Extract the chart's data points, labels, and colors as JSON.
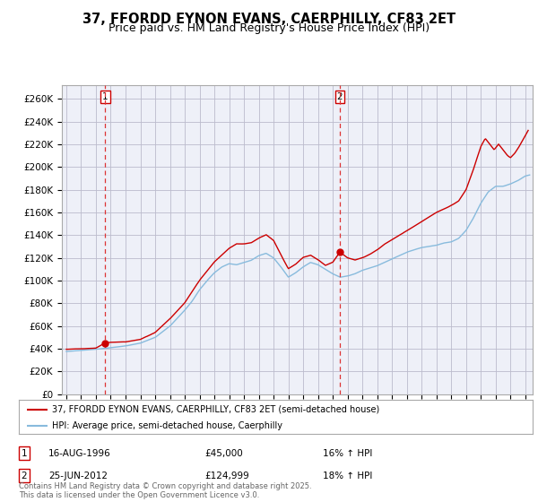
{
  "title": "37, FFORDD EYNON EVANS, CAERPHILLY, CF83 2ET",
  "subtitle": "Price paid vs. HM Land Registry's House Price Index (HPI)",
  "title_fontsize": 10.5,
  "subtitle_fontsize": 9,
  "ylabel_values": [
    0,
    20000,
    40000,
    60000,
    80000,
    100000,
    120000,
    140000,
    160000,
    180000,
    200000,
    220000,
    240000,
    260000
  ],
  "ylim": [
    0,
    272000
  ],
  "xlim_start": 1993.7,
  "xlim_end": 2025.5,
  "sale1_date": 1996.62,
  "sale1_price": 45000,
  "sale1_label": "1",
  "sale2_date": 2012.48,
  "sale2_price": 124999,
  "sale2_label": "2",
  "vline1_date": 1996.62,
  "vline2_date": 2012.48,
  "red_color": "#cc0000",
  "blue_color": "#88bbdd",
  "vline_color": "#dd3333",
  "grid_color": "#bbbbcc",
  "plot_bg_color": "#eef0f8",
  "legend_label_red": "37, FFORDD EYNON EVANS, CAERPHILLY, CF83 2ET (semi-detached house)",
  "legend_label_blue": "HPI: Average price, semi-detached house, Caerphilly",
  "annotation1_num": "1",
  "annotation1_date": "16-AUG-1996",
  "annotation1_price": "£45,000",
  "annotation1_hpi": "16% ↑ HPI",
  "annotation2_num": "2",
  "annotation2_date": "25-JUN-2012",
  "annotation2_price": "£124,999",
  "annotation2_hpi": "18% ↑ HPI",
  "footnote": "Contains HM Land Registry data © Crown copyright and database right 2025.\nThis data is licensed under the Open Government Licence v3.0.",
  "hpi_anchors": [
    [
      1994.0,
      37500
    ],
    [
      1995.0,
      38500
    ],
    [
      1996.0,
      39500
    ],
    [
      1997.0,
      41000
    ],
    [
      1998.0,
      42500
    ],
    [
      1999.0,
      45000
    ],
    [
      2000.0,
      50000
    ],
    [
      2001.0,
      60000
    ],
    [
      2002.0,
      74000
    ],
    [
      2002.5,
      82000
    ],
    [
      2003.0,
      92000
    ],
    [
      2003.5,
      100000
    ],
    [
      2004.0,
      107000
    ],
    [
      2004.5,
      112000
    ],
    [
      2005.0,
      115000
    ],
    [
      2005.5,
      114000
    ],
    [
      2006.0,
      116000
    ],
    [
      2006.5,
      118000
    ],
    [
      2007.0,
      122000
    ],
    [
      2007.5,
      124000
    ],
    [
      2008.0,
      120000
    ],
    [
      2008.5,
      112000
    ],
    [
      2009.0,
      103000
    ],
    [
      2009.5,
      107000
    ],
    [
      2010.0,
      112000
    ],
    [
      2010.5,
      116000
    ],
    [
      2011.0,
      114000
    ],
    [
      2011.5,
      110000
    ],
    [
      2012.0,
      106000
    ],
    [
      2012.5,
      103000
    ],
    [
      2013.0,
      104000
    ],
    [
      2013.5,
      106000
    ],
    [
      2014.0,
      109000
    ],
    [
      2014.5,
      111000
    ],
    [
      2015.0,
      113000
    ],
    [
      2015.5,
      116000
    ],
    [
      2016.0,
      119000
    ],
    [
      2016.5,
      122000
    ],
    [
      2017.0,
      125000
    ],
    [
      2017.5,
      127000
    ],
    [
      2018.0,
      129000
    ],
    [
      2018.5,
      130000
    ],
    [
      2019.0,
      131000
    ],
    [
      2019.5,
      133000
    ],
    [
      2020.0,
      134000
    ],
    [
      2020.5,
      137000
    ],
    [
      2021.0,
      144000
    ],
    [
      2021.5,
      155000
    ],
    [
      2022.0,
      168000
    ],
    [
      2022.5,
      178000
    ],
    [
      2023.0,
      183000
    ],
    [
      2023.5,
      183000
    ],
    [
      2024.0,
      185000
    ],
    [
      2024.5,
      188000
    ],
    [
      2025.0,
      192000
    ],
    [
      2025.3,
      193000
    ]
  ],
  "pp_anchors": [
    [
      1994.0,
      39500
    ],
    [
      1995.0,
      39800
    ],
    [
      1996.0,
      40500
    ],
    [
      1996.62,
      45000
    ],
    [
      1997.0,
      45500
    ],
    [
      1998.0,
      46000
    ],
    [
      1999.0,
      48000
    ],
    [
      2000.0,
      54000
    ],
    [
      2001.0,
      66000
    ],
    [
      2002.0,
      80000
    ],
    [
      2002.5,
      90000
    ],
    [
      2003.0,
      100000
    ],
    [
      2003.5,
      108000
    ],
    [
      2004.0,
      116000
    ],
    [
      2004.5,
      122000
    ],
    [
      2005.0,
      128000
    ],
    [
      2005.5,
      132000
    ],
    [
      2006.0,
      132000
    ],
    [
      2006.5,
      133000
    ],
    [
      2007.0,
      137000
    ],
    [
      2007.5,
      140000
    ],
    [
      2008.0,
      135000
    ],
    [
      2008.5,
      122000
    ],
    [
      2009.0,
      110000
    ],
    [
      2009.5,
      114000
    ],
    [
      2010.0,
      120000
    ],
    [
      2010.5,
      122000
    ],
    [
      2011.0,
      118000
    ],
    [
      2011.5,
      113000
    ],
    [
      2012.0,
      116000
    ],
    [
      2012.48,
      124999
    ],
    [
      2013.0,
      120000
    ],
    [
      2013.5,
      118000
    ],
    [
      2014.0,
      120000
    ],
    [
      2014.5,
      123000
    ],
    [
      2015.0,
      127000
    ],
    [
      2015.5,
      132000
    ],
    [
      2016.0,
      136000
    ],
    [
      2016.5,
      140000
    ],
    [
      2017.0,
      144000
    ],
    [
      2017.5,
      148000
    ],
    [
      2018.0,
      152000
    ],
    [
      2018.5,
      156000
    ],
    [
      2019.0,
      160000
    ],
    [
      2019.5,
      163000
    ],
    [
      2020.0,
      166000
    ],
    [
      2020.5,
      170000
    ],
    [
      2021.0,
      180000
    ],
    [
      2021.5,
      198000
    ],
    [
      2022.0,
      218000
    ],
    [
      2022.3,
      225000
    ],
    [
      2022.6,
      220000
    ],
    [
      2022.9,
      215000
    ],
    [
      2023.2,
      220000
    ],
    [
      2023.5,
      215000
    ],
    [
      2023.8,
      210000
    ],
    [
      2024.0,
      208000
    ],
    [
      2024.3,
      212000
    ],
    [
      2024.6,
      218000
    ],
    [
      2024.9,
      225000
    ],
    [
      2025.2,
      232000
    ]
  ]
}
